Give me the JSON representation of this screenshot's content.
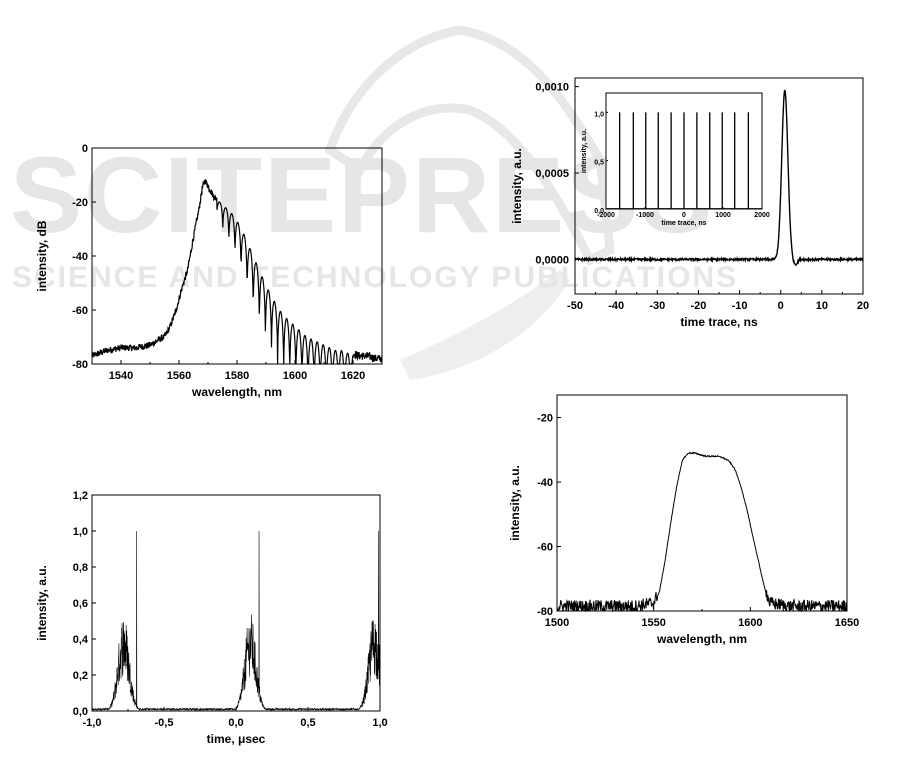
{
  "watermark": {
    "main_text": "SCITEPRESS",
    "sub_text": "SCIENCE AND TECHNOLOGY PUBLICATIONS"
  },
  "colors": {
    "trace": "#000000",
    "frame": "#000000",
    "watermark": "#e6e6e6"
  },
  "chart_data": [
    {
      "id": "spectrum-db",
      "type": "line",
      "xlabel": "wavelength, nm",
      "ylabel": "intensity, dB",
      "xlim": [
        1530,
        1630
      ],
      "ylim": [
        -80,
        0
      ],
      "xticks": [
        1540,
        1560,
        1580,
        1600,
        1620
      ],
      "yticks": [
        0,
        -20,
        -40,
        -60,
        -80
      ],
      "xtick_labels": [
        "1540",
        "1560",
        "1580",
        "1600",
        "1620"
      ],
      "ytick_labels": [
        "0",
        "-20",
        "-40",
        "-60",
        "-80"
      ],
      "x": [
        1530,
        1535,
        1540,
        1545,
        1550,
        1553,
        1555,
        1557,
        1559,
        1561,
        1563,
        1565,
        1567,
        1568,
        1569,
        1570,
        1572,
        1574,
        1576,
        1578,
        1580,
        1582,
        1584,
        1586,
        1588,
        1590,
        1592,
        1594,
        1596,
        1598,
        1600,
        1602,
        1604,
        1606,
        1608,
        1610,
        1612,
        1614,
        1616,
        1618,
        1620,
        1622,
        1625,
        1628,
        1630
      ],
      "y": [
        -77,
        -75,
        -74,
        -74,
        -73,
        -71,
        -70,
        -66,
        -60,
        -52,
        -45,
        -33,
        -22,
        -15,
        -12,
        -14,
        -18,
        -20,
        -22,
        -24,
        -27,
        -31,
        -36,
        -41,
        -46,
        -51,
        -55,
        -59,
        -62,
        -64,
        -66,
        -68,
        -70,
        -71,
        -72,
        -73,
        -74,
        -75,
        -75,
        -76,
        -76,
        -77,
        -77,
        -78,
        -78
      ],
      "grid": false
    },
    {
      "id": "pulse-train",
      "type": "line",
      "xlabel": "time, μsec",
      "ylabel": "intensity, a.u.",
      "xlim": [
        -1.0,
        1.0
      ],
      "ylim": [
        0.0,
        1.2
      ],
      "xticks": [
        -1.0,
        -0.5,
        0.0,
        0.5,
        1.0
      ],
      "yticks": [
        0.0,
        0.2,
        0.4,
        0.6,
        0.8,
        1.0,
        1.2
      ],
      "xtick_labels": [
        "-1,0",
        "-0,5",
        "0,0",
        "0,5",
        "1,0"
      ],
      "ytick_labels": [
        "0,0",
        "0,2",
        "0,4",
        "0,6",
        "0,8",
        "1,0",
        "1,2"
      ],
      "pulse_centers": [
        -0.78,
        0.1,
        0.96
      ],
      "pulse_spikes": [
        -0.69,
        0.16,
        0.99
      ],
      "peak_envelope": 0.55,
      "spike_value": 1.0,
      "grid": false
    },
    {
      "id": "single-pulse",
      "type": "line",
      "xlabel": "time trace, ns",
      "ylabel": "intensity, a.u.",
      "xlim": [
        -50,
        20
      ],
      "ylim": [
        -0.0002,
        0.00105
      ],
      "xticks": [
        -50,
        -40,
        -30,
        -20,
        -10,
        0,
        10,
        20
      ],
      "yticks": [
        0.0,
        0.0005,
        0.001
      ],
      "xtick_labels": [
        "-50",
        "-40",
        "-30",
        "-20",
        "-10",
        "0",
        "10",
        "20"
      ],
      "ytick_labels": [
        "0,0000",
        "0,0005",
        "0,0010"
      ],
      "pulse_center": 1.0,
      "pulse_peak": 0.00098,
      "grid": false,
      "inset": {
        "xlabel": "time trace, ns",
        "ylabel": "intensity, a.u.",
        "xlim": [
          -2000,
          2000
        ],
        "ylim": [
          0.0,
          1.2
        ],
        "xticks": [
          -2000,
          -1000,
          0,
          1000,
          2000
        ],
        "yticks": [
          0.0,
          0.5,
          1.0
        ],
        "xtick_labels": [
          "-2000",
          "-1000",
          "0",
          "1000",
          "2000"
        ],
        "ytick_labels": [
          "0,0",
          "0,5",
          "1,0"
        ],
        "spikes": [
          -1650,
          -1300,
          -980,
          -660,
          -330,
          0,
          330,
          660,
          980,
          1300,
          1650
        ],
        "spike_value": 1.0
      }
    },
    {
      "id": "spectrum-au",
      "type": "line",
      "xlabel": "wavelength, nm",
      "ylabel": "intensity, a.u.",
      "xlim": [
        1500,
        1650
      ],
      "ylim": [
        -80,
        -13
      ],
      "xticks": [
        1500,
        1550,
        1600,
        1650
      ],
      "yticks": [
        -20,
        -40,
        -60,
        -80
      ],
      "xtick_labels": [
        "1500",
        "1550",
        "1600",
        "1650"
      ],
      "ytick_labels": [
        "-20",
        "-40",
        "-60",
        "-80"
      ],
      "x": [
        1500,
        1520,
        1540,
        1550,
        1553,
        1556,
        1559,
        1562,
        1565,
        1568,
        1571,
        1574,
        1577,
        1580,
        1583,
        1586,
        1589,
        1592,
        1595,
        1598,
        1601,
        1604,
        1607,
        1610,
        1620,
        1635,
        1650
      ],
      "y": [
        -79,
        -79,
        -79,
        -78,
        -74,
        -64,
        -52,
        -41,
        -33,
        -31,
        -31,
        -31.5,
        -32,
        -32,
        -32,
        -32.5,
        -33.5,
        -36,
        -41,
        -48,
        -56,
        -64,
        -72,
        -78,
        -79,
        -79,
        -79
      ],
      "grid": false
    }
  ]
}
